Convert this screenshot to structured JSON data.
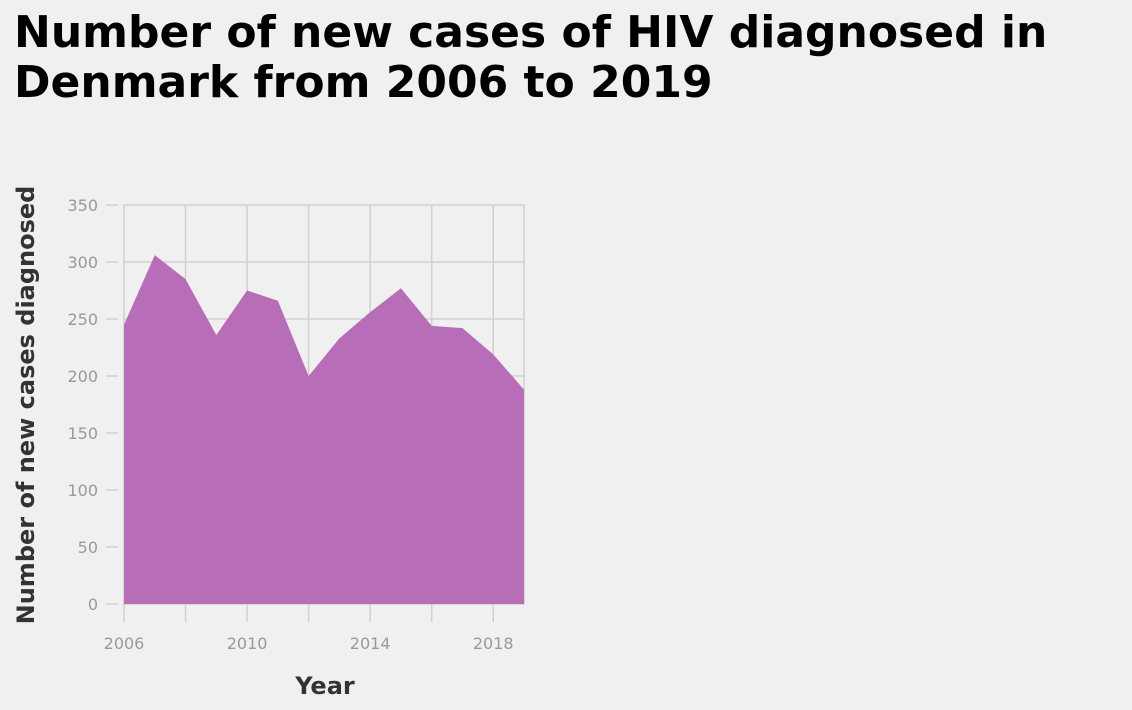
{
  "chart_data": {
    "type": "area",
    "title_lines": [
      "Number of new cases of HIV diagnosed in",
      "Denmark from 2006 to 2019"
    ],
    "xlabel": "Year",
    "ylabel": "Number of new cases diagnosed",
    "x": [
      2006,
      2007,
      2008,
      2009,
      2010,
      2011,
      2012,
      2013,
      2014,
      2015,
      2016,
      2017,
      2018,
      2019
    ],
    "series": [
      {
        "values": [
          245,
          306,
          285,
          236,
          275,
          266,
          200,
          233,
          256,
          277,
          244,
          242,
          219,
          188
        ]
      }
    ],
    "xlim": [
      2006,
      2019
    ],
    "ylim": [
      0,
      350
    ],
    "x_ticks": [
      2006,
      2010,
      2014,
      2018
    ],
    "x_gridlines": [
      2006,
      2008,
      2010,
      2012,
      2014,
      2016,
      2018
    ],
    "y_ticks": [
      0,
      50,
      100,
      150,
      200,
      250,
      300,
      350
    ],
    "grid": true,
    "fill_color": "#b86db8",
    "grid_color": "#d0d0d0",
    "tick_label_color": "#999999",
    "background": "#f0f0f0"
  }
}
